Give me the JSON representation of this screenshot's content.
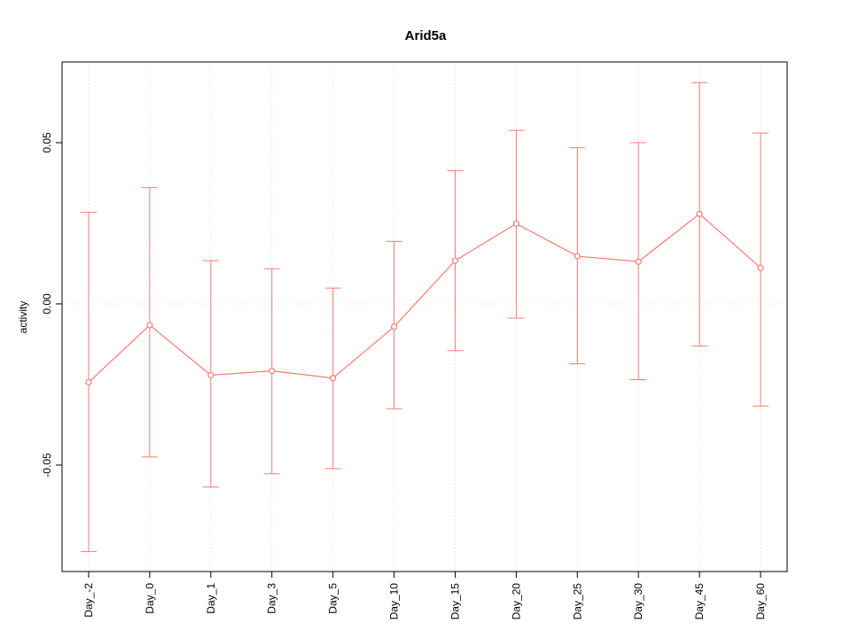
{
  "figure": {
    "title": "Arid5a",
    "ylabel": "activity"
  },
  "chart_data": {
    "type": "line",
    "title": "Arid5a",
    "xlabel": "",
    "ylabel": "activity",
    "legend": "none",
    "grid": "dotted vertical line at each category; dotted horizontal line at y=0",
    "categories": [
      "Day_-2",
      "Day_0",
      "Day_1",
      "Day_3",
      "Day_5",
      "Day_10",
      "Day_15",
      "Day_20",
      "Day_25",
      "Day_30",
      "Day_45",
      "Day_60"
    ],
    "ylim": [
      -0.083,
      0.075
    ],
    "yticks": [
      -0.05,
      0.0,
      0.05
    ],
    "ytick_labels": [
      "-0.05",
      "0.00",
      "0.05"
    ],
    "grid_color": "#dadada",
    "series": [
      {
        "name": "activity",
        "color": "#f87b72",
        "marker": "open-circle",
        "values": [
          -0.0243,
          -0.0066,
          -0.0221,
          -0.0208,
          -0.023,
          -0.0071,
          0.0134,
          0.0249,
          0.0148,
          0.0131,
          0.0279,
          0.0112
        ],
        "upper": [
          0.0284,
          0.0361,
          0.0134,
          0.0109,
          0.0049,
          0.0194,
          0.0413,
          0.0538,
          0.0484,
          0.05,
          0.0686,
          0.053
        ],
        "lower": [
          -0.0768,
          -0.0475,
          -0.0568,
          -0.0527,
          -0.0511,
          -0.0325,
          -0.0145,
          -0.0044,
          -0.0186,
          -0.0235,
          -0.0131,
          -0.0317
        ]
      }
    ]
  }
}
